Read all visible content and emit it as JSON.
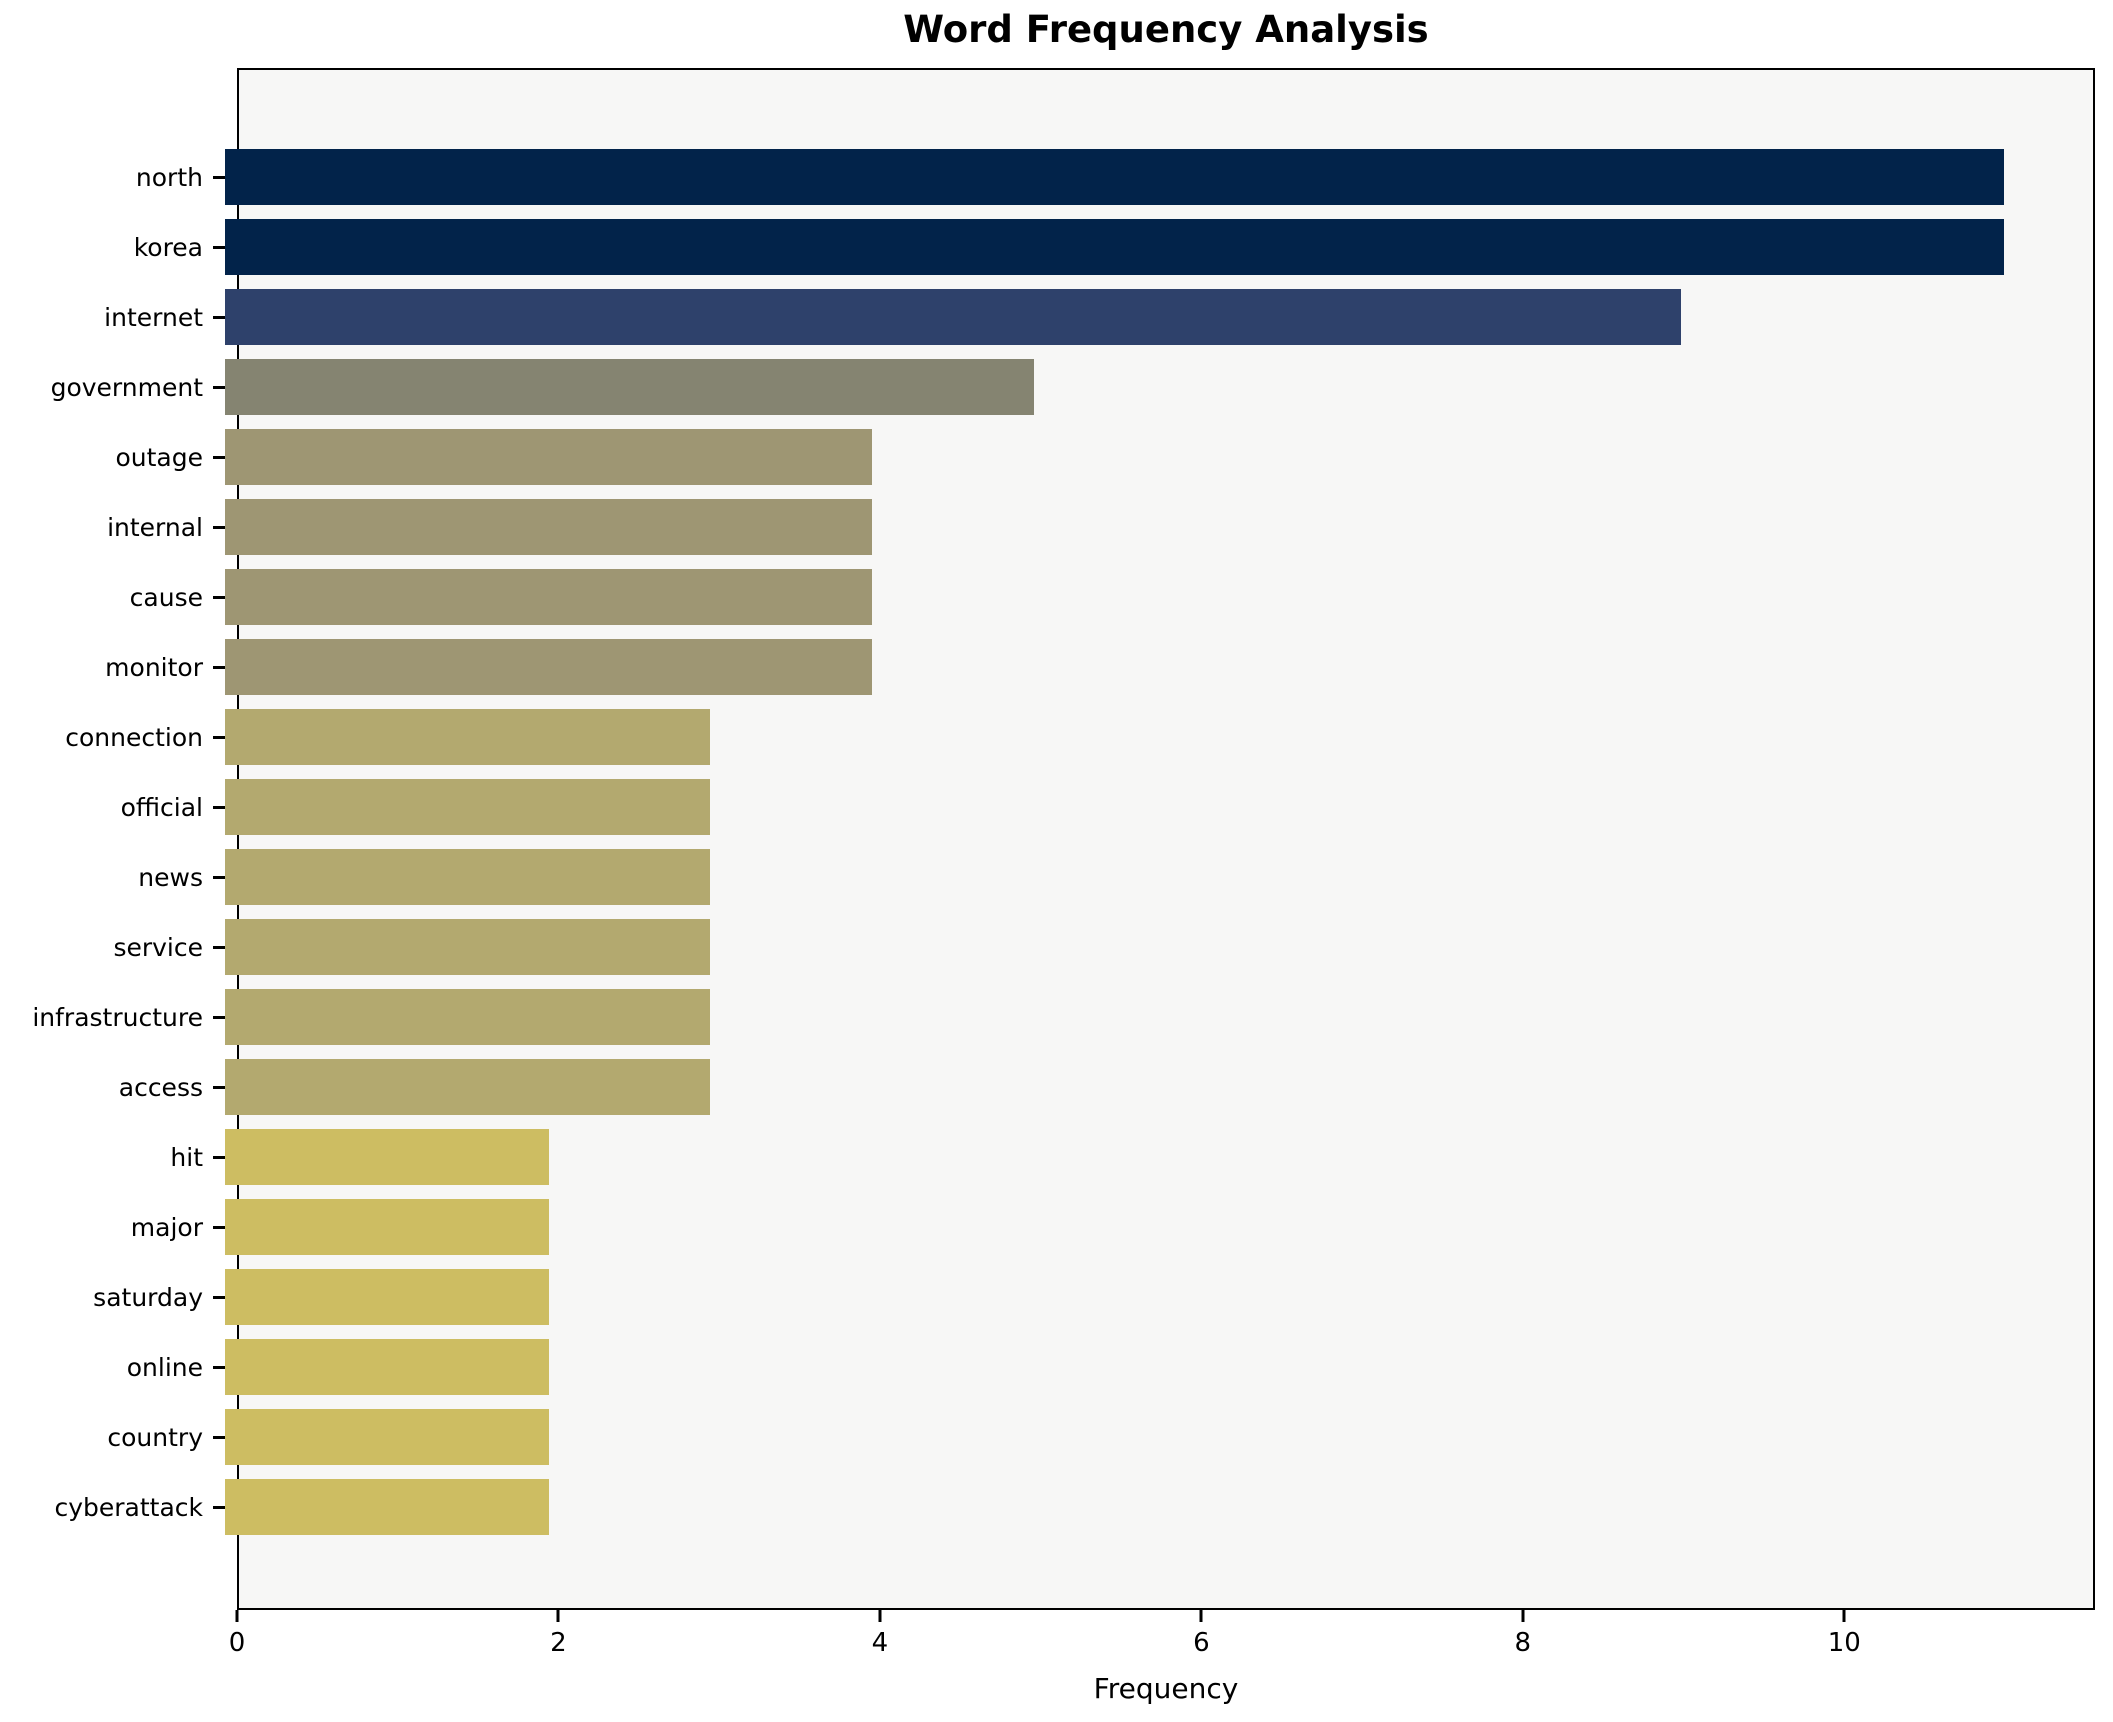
{
  "chart_data": {
    "type": "bar",
    "orientation": "horizontal",
    "title": "Word Frequency Analysis",
    "xlabel": "Frequency",
    "ylabel": "",
    "categories": [
      "north",
      "korea",
      "internet",
      "government",
      "outage",
      "internal",
      "cause",
      "monitor",
      "connection",
      "official",
      "news",
      "service",
      "infrastructure",
      "access",
      "hit",
      "major",
      "saturday",
      "online",
      "country",
      "cyberattack"
    ],
    "values": [
      11,
      11,
      9,
      5,
      4,
      4,
      4,
      4,
      3,
      3,
      3,
      3,
      3,
      3,
      2,
      2,
      2,
      2,
      2,
      2
    ],
    "bar_colors": [
      "#02234A",
      "#02234A",
      "#2E416B",
      "#858471",
      "#9E9673",
      "#9E9673",
      "#9E9673",
      "#9E9673",
      "#B3A96F",
      "#B3A96F",
      "#B3A96F",
      "#B3A96F",
      "#B3A96F",
      "#B3A96F",
      "#CDBD62",
      "#CDBD62",
      "#CDBD62",
      "#CDBD62",
      "#CDBD62",
      "#CDBD62"
    ],
    "xlim": [
      0,
      11.56
    ],
    "xticks": [
      0,
      2,
      4,
      6,
      8,
      10
    ],
    "grid": false,
    "legend_position": "none",
    "plot_bg": "#F7F7F6",
    "fig_bg": "#FFFFFF",
    "spine_color": "#000000"
  }
}
